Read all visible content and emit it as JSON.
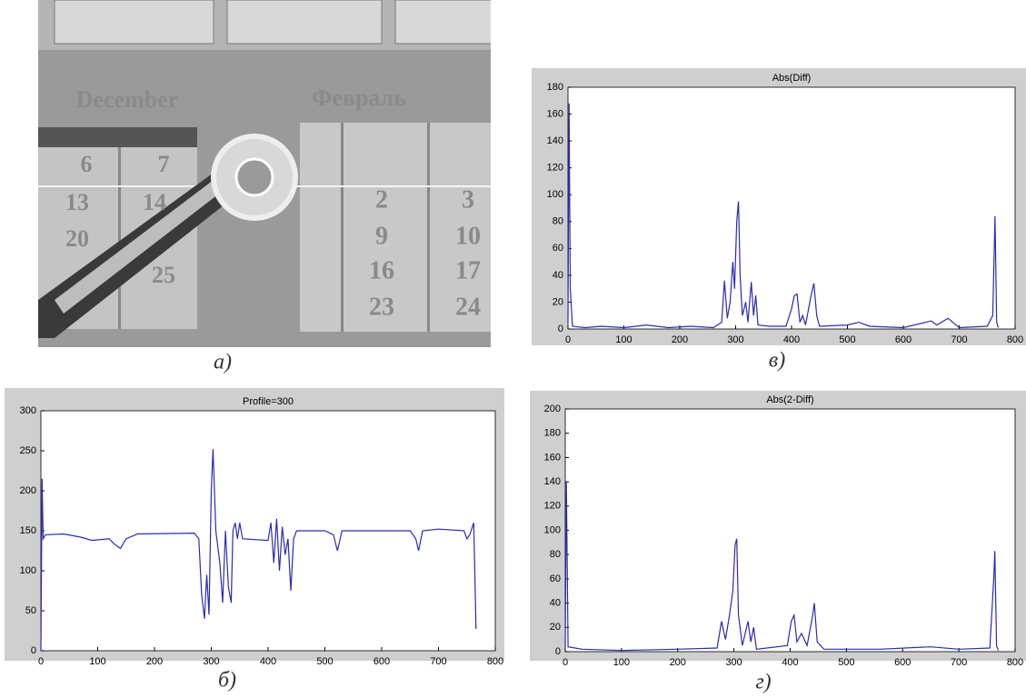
{
  "photo": {
    "caption": "а)",
    "texts": [
      "December",
      "Февраль",
      "6",
      "7",
      "13",
      "14",
      "20",
      "25",
      "2",
      "3",
      "9",
      "10",
      "16",
      "17",
      "23",
      "24"
    ]
  },
  "chart_data": [
    {
      "type": "line",
      "title": "Abs(Diff)",
      "caption": "в)",
      "color": "#2b2bb0",
      "x": [
        0,
        2,
        4,
        8,
        30,
        60,
        100,
        140,
        180,
        220,
        260,
        275,
        280,
        285,
        290,
        295,
        298,
        302,
        305,
        308,
        312,
        318,
        322,
        328,
        332,
        336,
        340,
        360,
        390,
        400,
        405,
        410,
        415,
        420,
        425,
        435,
        440,
        445,
        450,
        500,
        520,
        540,
        600,
        650,
        660,
        680,
        700,
        750,
        760,
        764,
        767,
        770
      ],
      "values": [
        5,
        168,
        30,
        2,
        1,
        2,
        1,
        3,
        1,
        2,
        1,
        5,
        36,
        8,
        20,
        50,
        30,
        80,
        95,
        40,
        10,
        20,
        5,
        35,
        10,
        25,
        3,
        2,
        2,
        15,
        25,
        26,
        5,
        10,
        3,
        25,
        34,
        10,
        2,
        3,
        5,
        2,
        1,
        6,
        3,
        8,
        1,
        2,
        10,
        84,
        5,
        1
      ],
      "xlim": [
        0,
        800
      ],
      "xticks": [
        0,
        100,
        200,
        300,
        400,
        500,
        600,
        700,
        800
      ],
      "ylim": [
        0,
        180
      ],
      "yticks": [
        0,
        20,
        40,
        60,
        80,
        100,
        120,
        140,
        160,
        180
      ]
    },
    {
      "type": "line",
      "title": "Profile=300",
      "caption": "б)",
      "color": "#2b2bb0",
      "x": [
        0,
        2,
        4,
        8,
        40,
        70,
        90,
        120,
        130,
        140,
        150,
        170,
        270,
        278,
        283,
        288,
        292,
        296,
        300,
        303,
        308,
        315,
        320,
        325,
        330,
        335,
        338,
        342,
        346,
        350,
        355,
        400,
        405,
        410,
        415,
        420,
        425,
        430,
        435,
        440,
        445,
        450,
        500,
        515,
        522,
        530,
        580,
        650,
        660,
        665,
        672,
        700,
        745,
        750,
        755,
        762,
        766
      ],
      "values": [
        0,
        215,
        140,
        145,
        146,
        142,
        138,
        140,
        133,
        128,
        140,
        146,
        147,
        140,
        70,
        40,
        95,
        45,
        200,
        252,
        150,
        110,
        60,
        150,
        80,
        60,
        150,
        160,
        140,
        160,
        140,
        138,
        160,
        110,
        165,
        100,
        155,
        120,
        140,
        75,
        140,
        150,
        150,
        145,
        125,
        150,
        150,
        150,
        140,
        125,
        150,
        152,
        150,
        140,
        145,
        160,
        27
      ],
      "xlim": [
        0,
        800
      ],
      "xticks": [
        0,
        100,
        200,
        300,
        400,
        500,
        600,
        700,
        800
      ],
      "ylim": [
        0,
        300
      ],
      "yticks": [
        0,
        50,
        100,
        150,
        200,
        250,
        300
      ]
    },
    {
      "type": "line",
      "title": "Abs(2-Diff)",
      "caption": "г)",
      "color": "#2b2bb0",
      "x": [
        0,
        2,
        5,
        30,
        100,
        200,
        270,
        278,
        285,
        292,
        298,
        302,
        305,
        308,
        315,
        325,
        330,
        335,
        340,
        395,
        402,
        407,
        412,
        420,
        430,
        440,
        443,
        448,
        460,
        560,
        650,
        700,
        755,
        762,
        764,
        767,
        770
      ],
      "values": [
        4,
        140,
        4,
        2,
        1,
        2,
        3,
        25,
        10,
        30,
        50,
        88,
        93,
        30,
        5,
        25,
        8,
        20,
        2,
        5,
        25,
        30,
        8,
        15,
        5,
        30,
        40,
        8,
        2,
        2,
        4,
        2,
        3,
        60,
        83,
        5,
        1
      ],
      "xlim": [
        0,
        800
      ],
      "xticks": [
        0,
        100,
        200,
        300,
        400,
        500,
        600,
        700,
        800
      ],
      "ylim": [
        0,
        200
      ],
      "yticks": [
        0,
        20,
        40,
        60,
        80,
        100,
        120,
        140,
        160,
        180,
        200
      ]
    }
  ]
}
